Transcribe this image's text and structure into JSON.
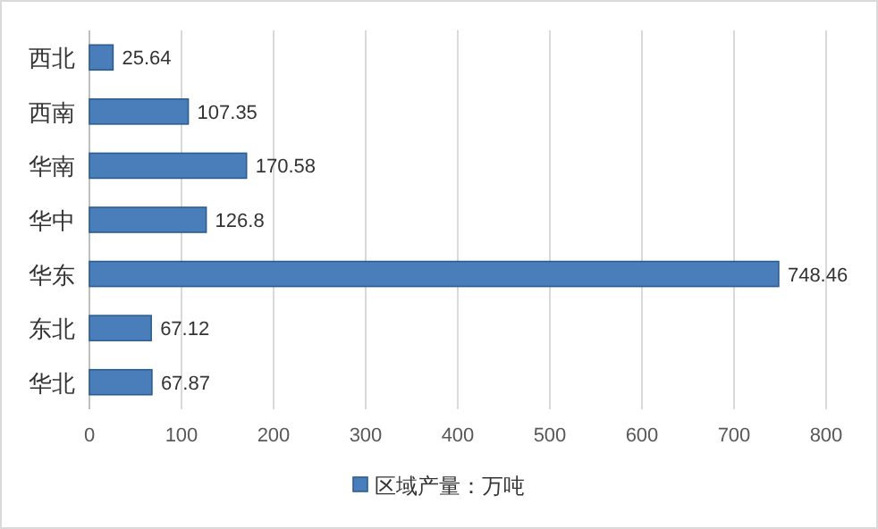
{
  "chart_data": {
    "type": "bar",
    "orientation": "horizontal",
    "categories": [
      "西北",
      "西南",
      "华南",
      "华中",
      "华东",
      "东北",
      "华北"
    ],
    "series": [
      {
        "name": "区域产量：万吨",
        "color": "#4a7ebb",
        "values": [
          25.64,
          107.35,
          170.58,
          126.8,
          748.46,
          67.12,
          67.87
        ]
      }
    ],
    "xlim": [
      0,
      800
    ],
    "xticks": [
      0,
      100,
      200,
      300,
      400,
      500,
      600,
      700,
      800
    ],
    "grid": "x",
    "legend": "bottom",
    "data_labels": true
  }
}
